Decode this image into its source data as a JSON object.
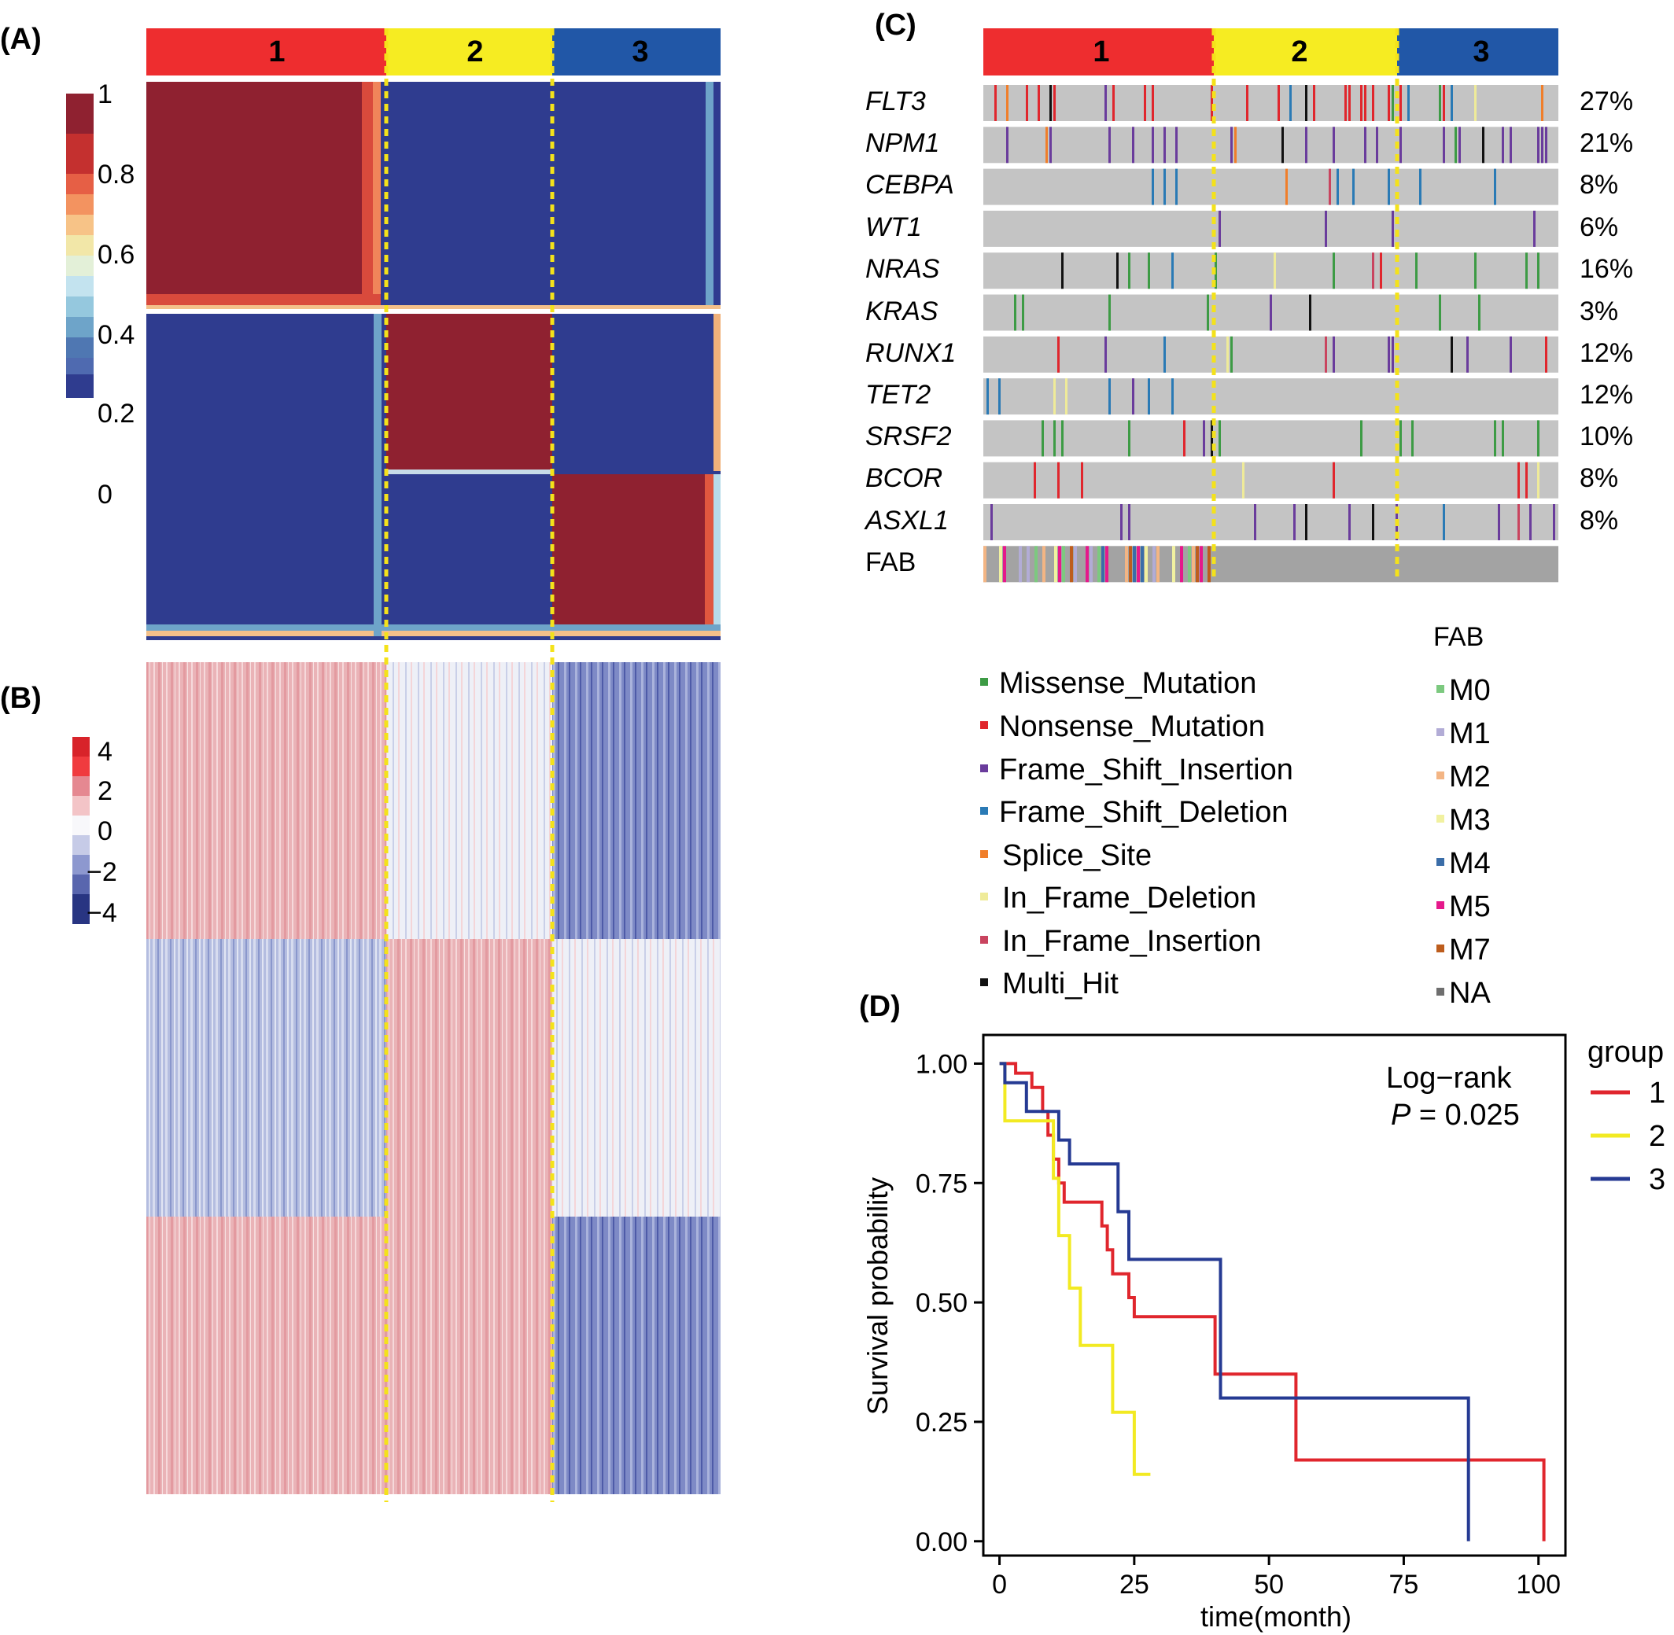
{
  "panels": {
    "a": "(A)",
    "b": "(B)",
    "c": "(C)",
    "d": "(D)"
  },
  "clusters": [
    "1",
    "2",
    "3"
  ],
  "colors": {
    "cluster1": "#ee2d2f",
    "cluster2": "#f6ec22",
    "cluster3": "#2157a7",
    "hi": "#8f2130",
    "lo": "#2f3c8f",
    "dash": "#f4e21a",
    "gray": "#c4c4c4"
  },
  "consensus_colorbar": {
    "ticks": [
      "1",
      "0.8",
      "0.6",
      "0.4",
      "0.2",
      "0"
    ]
  },
  "expression_colorbar": {
    "ticks": [
      "4",
      "2",
      "0",
      "−2",
      "−4"
    ]
  },
  "oncoplot": {
    "genes": [
      {
        "name": "FLT3",
        "pct": "27%"
      },
      {
        "name": "NPM1",
        "pct": "21%"
      },
      {
        "name": "CEBPA",
        "pct": "8%"
      },
      {
        "name": "WT1",
        "pct": "6%"
      },
      {
        "name": "NRAS",
        "pct": "16%"
      },
      {
        "name": "KRAS",
        "pct": "3%"
      },
      {
        "name": "RUNX1",
        "pct": "12%"
      },
      {
        "name": "TET2",
        "pct": "12%"
      },
      {
        "name": "SRSF2",
        "pct": "10%"
      },
      {
        "name": "BCOR",
        "pct": "8%"
      },
      {
        "name": "ASXL1",
        "pct": "8%"
      }
    ],
    "fab_row_label": "FAB"
  },
  "mutation_legend": [
    {
      "label": "Missense_Mutation",
      "color": "#3d9b45"
    },
    {
      "label": "Nonsense_Mutation",
      "color": "#e0262d"
    },
    {
      "label": "Frame_Shift_Insertion",
      "color": "#6a3c9c"
    },
    {
      "label": "Frame_Shift_Deletion",
      "color": "#2a7ab5"
    },
    {
      "label": "Splice_Site",
      "color": "#f07e2a"
    },
    {
      "label": "In_Frame_Deletion",
      "color": "#efeb99"
    },
    {
      "label": "In_Frame_Insertion",
      "color": "#c9445f"
    },
    {
      "label": "Multi_Hit",
      "color": "#111111"
    }
  ],
  "fab_legend": {
    "title": "FAB",
    "items": [
      {
        "label": "M0",
        "color": "#7cc97f"
      },
      {
        "label": "M1",
        "color": "#b2acd6"
      },
      {
        "label": "M2",
        "color": "#f3b584"
      },
      {
        "label": "M3",
        "color": "#f1f1a0"
      },
      {
        "label": "M4",
        "color": "#3a6da8"
      },
      {
        "label": "M5",
        "color": "#e5198b"
      },
      {
        "label": "M7",
        "color": "#bd5d1d"
      },
      {
        "label": "NA",
        "color": "#6e6e6e"
      }
    ]
  },
  "chart_data": {
    "type": "line",
    "subtype": "kaplan-meier",
    "xlabel": "time(month)",
    "ylabel": "Survival probability",
    "xlim": [
      -3,
      105
    ],
    "ylim": [
      -0.03,
      1.06
    ],
    "xticks": [
      0,
      25,
      50,
      75,
      100
    ],
    "xtick_labels": [
      "0",
      "25",
      "50",
      "75",
      "100"
    ],
    "yticks": [
      0,
      0.25,
      0.5,
      0.75,
      1
    ],
    "ytick_labels": [
      "0.00",
      "0.25",
      "0.50",
      "0.75",
      "1.00"
    ],
    "annotation": {
      "line1": "Log−rank",
      "p_label": "P",
      "p_value": " = 0.025"
    },
    "legend": {
      "title": "group",
      "position": "right"
    },
    "series": [
      {
        "name": "1",
        "color": "#e0262d",
        "points": [
          [
            0,
            1
          ],
          [
            3,
            1
          ],
          [
            3,
            0.98
          ],
          [
            6,
            0.98
          ],
          [
            6,
            0.95
          ],
          [
            8,
            0.95
          ],
          [
            8,
            0.9
          ],
          [
            9,
            0.9
          ],
          [
            9,
            0.85
          ],
          [
            10,
            0.85
          ],
          [
            10,
            0.8
          ],
          [
            11,
            0.8
          ],
          [
            11,
            0.75
          ],
          [
            12,
            0.75
          ],
          [
            12,
            0.71
          ],
          [
            19,
            0.71
          ],
          [
            19,
            0.66
          ],
          [
            20,
            0.66
          ],
          [
            20,
            0.61
          ],
          [
            21,
            0.61
          ],
          [
            21,
            0.56
          ],
          [
            24,
            0.56
          ],
          [
            24,
            0.51
          ],
          [
            25,
            0.51
          ],
          [
            25,
            0.47
          ],
          [
            40,
            0.47
          ],
          [
            40,
            0.35
          ],
          [
            55,
            0.35
          ],
          [
            55,
            0.17
          ],
          [
            101,
            0.17
          ],
          [
            101,
            0
          ]
        ]
      },
      {
        "name": "2",
        "color": "#f2ea22",
        "points": [
          [
            0,
            1
          ],
          [
            1,
            1
          ],
          [
            1,
            0.88
          ],
          [
            10,
            0.88
          ],
          [
            10,
            0.76
          ],
          [
            11,
            0.76
          ],
          [
            11,
            0.64
          ],
          [
            13,
            0.64
          ],
          [
            13,
            0.53
          ],
          [
            15,
            0.53
          ],
          [
            15,
            0.41
          ],
          [
            21,
            0.41
          ],
          [
            21,
            0.27
          ],
          [
            25,
            0.27
          ],
          [
            25,
            0.14
          ],
          [
            28,
            0.14
          ]
        ]
      },
      {
        "name": "3",
        "color": "#253a93",
        "points": [
          [
            0,
            1
          ],
          [
            1,
            1
          ],
          [
            1,
            0.96
          ],
          [
            5,
            0.96
          ],
          [
            5,
            0.9
          ],
          [
            11,
            0.9
          ],
          [
            11,
            0.84
          ],
          [
            13,
            0.84
          ],
          [
            13,
            0.79
          ],
          [
            17,
            0.79
          ],
          [
            17,
            0.79
          ],
          [
            22,
            0.79
          ],
          [
            22,
            0.69
          ],
          [
            24,
            0.69
          ],
          [
            24,
            0.59
          ],
          [
            41,
            0.59
          ],
          [
            41,
            0.3
          ],
          [
            87,
            0.3
          ],
          [
            87,
            0
          ]
        ]
      }
    ]
  }
}
